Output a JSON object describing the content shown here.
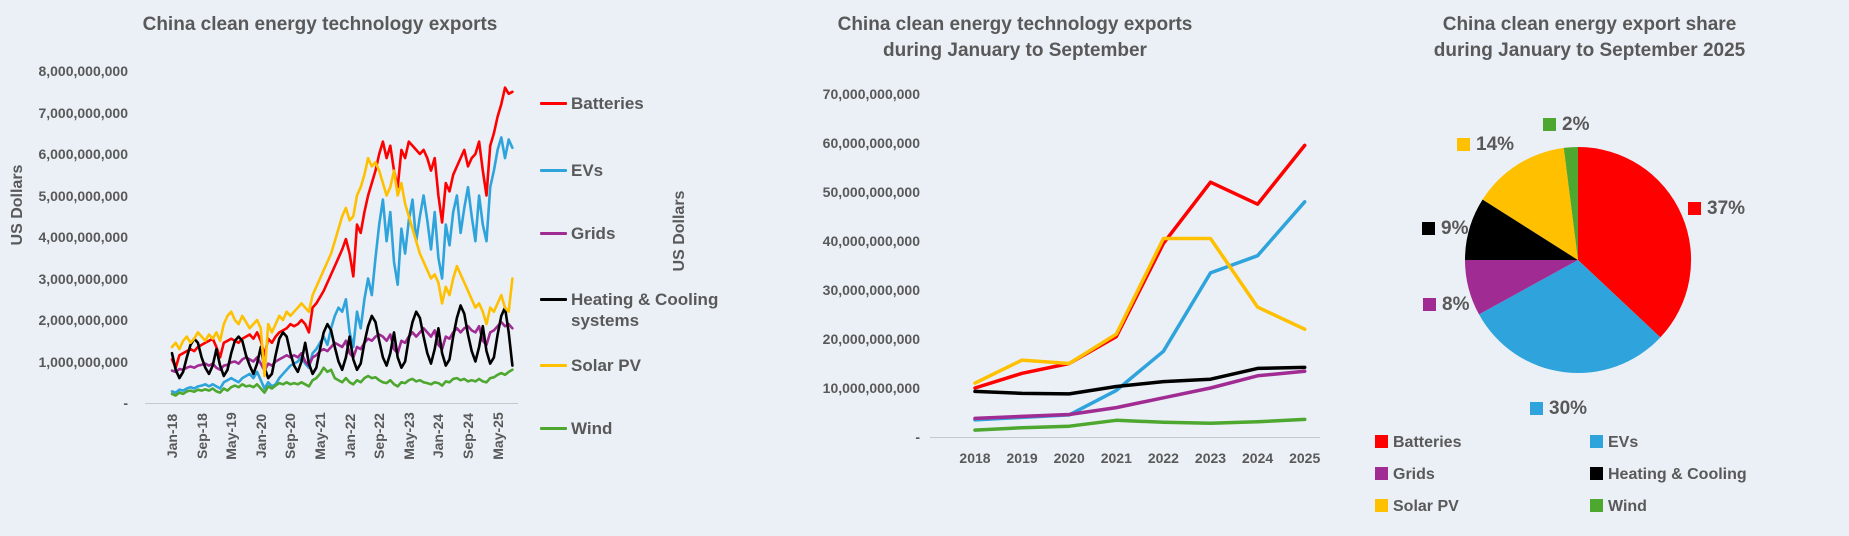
{
  "page": {
    "background": "#EAF0F6",
    "text_color": "#595959"
  },
  "series_colors": {
    "Batteries": "#FF0000",
    "EVs": "#2EA3DC",
    "Grids": "#A02B93",
    "Heating & Cooling systems": "#000000",
    "Heating & Cooling": "#000000",
    "Solar PV": "#FFC000",
    "Wind": "#4EA72E"
  },
  "chart_data": [
    {
      "id": "monthly_exports",
      "type": "line",
      "title": "China clean energy technology exports",
      "ylabel": "US Dollars",
      "ylim": [
        0,
        8000000000
      ],
      "y_ticks": [
        {
          "value_billions": 8,
          "label": "8,000,000,000"
        },
        {
          "value_billions": 7,
          "label": "7,000,000,000"
        },
        {
          "value_billions": 6,
          "label": "6,000,000,000"
        },
        {
          "value_billions": 5,
          "label": "5,000,000,000"
        },
        {
          "value_billions": 4,
          "label": "4,000,000,000"
        },
        {
          "value_billions": 3,
          "label": "3,000,000,000"
        },
        {
          "value_billions": 2,
          "label": "2,000,000,000"
        },
        {
          "value_billions": 1,
          "label": "1,000,000,000"
        },
        {
          "value_billions": 0,
          "label": "-"
        }
      ],
      "x_range": "Jan-18 to Sep-25, monthly",
      "x_tick_labels": [
        "Jan-18",
        "Sep-18",
        "May-19",
        "Jan-20",
        "Sep-20",
        "May-21",
        "Jan-22",
        "Sep-22",
        "May-23",
        "Jan-24",
        "Sep-24",
        "May-25"
      ],
      "x_tick_every_months": 8,
      "legend_position": "right",
      "legend": [
        "Batteries",
        "EVs",
        "Grids",
        "Heating & Cooling systems",
        "Solar PV",
        "Wind"
      ],
      "series": [
        {
          "name": "Batteries",
          "color": "#FF0000",
          "values_billions": [
            1.05,
            0.85,
            1.15,
            1.2,
            1.25,
            1.3,
            1.25,
            1.35,
            1.4,
            1.45,
            1.5,
            1.55,
            1.35,
            1.1,
            1.45,
            1.5,
            1.55,
            1.5,
            1.45,
            1.55,
            1.6,
            1.65,
            1.55,
            1.7,
            1.5,
            1.15,
            1.55,
            1.45,
            1.6,
            1.7,
            1.75,
            1.8,
            1.9,
            1.85,
            1.9,
            2.0,
            1.9,
            1.7,
            2.3,
            2.4,
            2.55,
            2.7,
            2.9,
            3.1,
            3.3,
            3.5,
            3.7,
            3.95,
            3.6,
            3.05,
            4.3,
            4.1,
            4.6,
            5.0,
            5.3,
            5.6,
            6.0,
            6.3,
            5.9,
            6.2,
            5.6,
            5.2,
            6.1,
            5.9,
            6.3,
            6.2,
            6.1,
            6.0,
            6.1,
            5.9,
            5.6,
            5.9,
            5.0,
            4.35,
            5.3,
            5.1,
            5.5,
            5.7,
            5.9,
            6.1,
            5.7,
            5.9,
            6.0,
            6.3,
            5.6,
            5.0,
            6.2,
            6.5,
            6.9,
            7.2,
            7.6,
            7.45,
            7.5
          ]
        },
        {
          "name": "EVs",
          "color": "#2EA3DC",
          "values_billions": [
            0.28,
            0.25,
            0.32,
            0.3,
            0.35,
            0.38,
            0.35,
            0.4,
            0.42,
            0.45,
            0.4,
            0.45,
            0.4,
            0.35,
            0.5,
            0.55,
            0.6,
            0.55,
            0.5,
            0.6,
            0.65,
            0.7,
            0.6,
            0.75,
            0.55,
            0.35,
            0.5,
            0.4,
            0.45,
            0.6,
            0.7,
            0.8,
            0.9,
            0.95,
            1.0,
            1.1,
            0.95,
            0.85,
            1.2,
            1.3,
            1.45,
            1.6,
            1.4,
            1.8,
            2.1,
            2.3,
            2.2,
            2.5,
            1.7,
            1.35,
            2.2,
            1.8,
            2.5,
            3.0,
            2.6,
            3.5,
            4.3,
            4.9,
            3.9,
            4.6,
            3.4,
            2.85,
            4.2,
            3.6,
            4.4,
            4.9,
            3.9,
            4.5,
            5.0,
            4.4,
            3.7,
            4.6,
            3.5,
            3.0,
            4.3,
            3.8,
            4.6,
            5.0,
            4.1,
            4.7,
            5.2,
            4.5,
            3.9,
            5.0,
            4.3,
            3.9,
            5.2,
            5.6,
            6.1,
            6.4,
            5.9,
            6.35,
            6.15
          ]
        },
        {
          "name": "Grids",
          "color": "#A02B93",
          "values_billions": [
            0.78,
            0.75,
            0.82,
            0.8,
            0.85,
            0.88,
            0.85,
            0.9,
            0.92,
            0.95,
            0.9,
            0.95,
            0.85,
            0.8,
            0.9,
            0.92,
            0.98,
            1.0,
            0.95,
            1.05,
            1.1,
            1.05,
            1.0,
            1.1,
            0.95,
            0.78,
            0.95,
            0.9,
            1.0,
            1.05,
            1.1,
            1.15,
            1.1,
            1.15,
            1.1,
            1.2,
            1.0,
            0.9,
            1.1,
            1.15,
            1.25,
            1.3,
            1.25,
            1.35,
            1.45,
            1.4,
            1.35,
            1.5,
            1.2,
            1.1,
            1.35,
            1.3,
            1.45,
            1.55,
            1.5,
            1.6,
            1.65,
            1.6,
            1.5,
            1.65,
            1.3,
            1.2,
            1.5,
            1.45,
            1.6,
            1.7,
            1.6,
            1.7,
            1.8,
            1.7,
            1.6,
            1.75,
            1.4,
            1.3,
            1.6,
            1.55,
            1.7,
            1.8,
            1.7,
            1.8,
            1.85,
            1.75,
            1.7,
            1.85,
            1.5,
            1.4,
            1.7,
            1.75,
            1.85,
            1.95,
            1.85,
            1.9,
            1.8
          ]
        },
        {
          "name": "Heating & Cooling systems",
          "color": "#000000",
          "values_billions": [
            1.2,
            0.8,
            0.6,
            0.75,
            1.1,
            1.4,
            1.55,
            1.45,
            1.1,
            0.85,
            0.7,
            0.9,
            1.3,
            0.9,
            0.65,
            0.8,
            1.2,
            1.5,
            1.6,
            1.5,
            1.15,
            0.9,
            0.7,
            0.95,
            1.35,
            0.85,
            0.6,
            0.7,
            1.15,
            1.55,
            1.7,
            1.6,
            1.2,
            0.9,
            0.75,
            1.0,
            1.45,
            0.95,
            0.7,
            0.85,
            1.3,
            1.7,
            1.9,
            1.75,
            1.35,
            1.0,
            0.8,
            1.1,
            1.6,
            1.05,
            0.8,
            0.95,
            1.45,
            1.85,
            2.1,
            1.95,
            1.5,
            1.1,
            0.9,
            1.2,
            1.7,
            1.1,
            0.85,
            1.0,
            1.55,
            1.95,
            2.2,
            2.05,
            1.6,
            1.2,
            0.95,
            1.3,
            1.8,
            1.2,
            0.9,
            1.05,
            1.6,
            2.05,
            2.35,
            2.15,
            1.65,
            1.25,
            1.0,
            1.35,
            1.85,
            1.25,
            0.95,
            1.1,
            1.65,
            2.1,
            2.3,
            1.7,
            0.9
          ]
        },
        {
          "name": "Solar PV",
          "color": "#FFC000",
          "values_billions": [
            1.35,
            1.45,
            1.3,
            1.5,
            1.6,
            1.45,
            1.55,
            1.7,
            1.6,
            1.5,
            1.65,
            1.55,
            1.7,
            1.5,
            1.9,
            2.1,
            2.2,
            2.0,
            1.9,
            2.1,
            1.95,
            1.8,
            1.9,
            2.0,
            1.8,
            0.65,
            1.9,
            1.7,
            1.9,
            2.1,
            2.0,
            2.2,
            2.1,
            2.2,
            2.3,
            2.4,
            2.3,
            2.2,
            2.6,
            2.8,
            3.0,
            3.2,
            3.4,
            3.6,
            3.9,
            4.2,
            4.5,
            4.7,
            4.4,
            4.5,
            5.0,
            5.2,
            5.5,
            5.9,
            5.7,
            5.8,
            5.6,
            5.3,
            5.0,
            5.2,
            5.6,
            5.0,
            5.3,
            4.8,
            4.5,
            4.2,
            3.9,
            3.6,
            3.4,
            3.2,
            3.0,
            3.1,
            2.9,
            2.4,
            2.8,
            2.6,
            3.0,
            3.3,
            3.1,
            2.9,
            2.7,
            2.5,
            2.3,
            2.4,
            2.2,
            1.9,
            2.3,
            2.2,
            2.4,
            2.6,
            2.3,
            2.2,
            3.0
          ]
        },
        {
          "name": "Wind",
          "color": "#4EA72E",
          "values_billions": [
            0.22,
            0.18,
            0.25,
            0.22,
            0.28,
            0.3,
            0.27,
            0.32,
            0.3,
            0.33,
            0.3,
            0.35,
            0.28,
            0.25,
            0.35,
            0.3,
            0.38,
            0.42,
            0.38,
            0.45,
            0.4,
            0.42,
            0.38,
            0.45,
            0.35,
            0.25,
            0.4,
            0.35,
            0.42,
            0.48,
            0.45,
            0.5,
            0.45,
            0.48,
            0.45,
            0.5,
            0.45,
            0.4,
            0.55,
            0.6,
            0.7,
            0.85,
            0.75,
            0.8,
            0.6,
            0.55,
            0.5,
            0.6,
            0.5,
            0.45,
            0.55,
            0.5,
            0.6,
            0.65,
            0.6,
            0.62,
            0.55,
            0.5,
            0.48,
            0.55,
            0.45,
            0.4,
            0.5,
            0.48,
            0.55,
            0.58,
            0.52,
            0.55,
            0.5,
            0.48,
            0.45,
            0.5,
            0.48,
            0.42,
            0.52,
            0.5,
            0.58,
            0.6,
            0.55,
            0.58,
            0.52,
            0.55,
            0.52,
            0.58,
            0.52,
            0.5,
            0.6,
            0.62,
            0.68,
            0.72,
            0.68,
            0.75,
            0.8
          ]
        }
      ]
    },
    {
      "id": "jan_sep_totals",
      "type": "line",
      "title": "China clean energy technology exports during January to September",
      "title_lines": [
        "China clean energy technology exports",
        "during January to September"
      ],
      "ylabel": "US Dollars",
      "ylim": [
        0,
        70000000000
      ],
      "y_ticks": [
        {
          "value_billions": 70,
          "label": "70,000,000,000"
        },
        {
          "value_billions": 60,
          "label": "60,000,000,000"
        },
        {
          "value_billions": 50,
          "label": "50,000,000,000"
        },
        {
          "value_billions": 40,
          "label": "40,000,000,000"
        },
        {
          "value_billions": 30,
          "label": "30,000,000,000"
        },
        {
          "value_billions": 20,
          "label": "20,000,000,000"
        },
        {
          "value_billions": 10,
          "label": "10,000,000,000"
        },
        {
          "value_billions": 0,
          "label": "-"
        }
      ],
      "categories": [
        "2018",
        "2019",
        "2020",
        "2021",
        "2022",
        "2023",
        "2024",
        "2025"
      ],
      "series": [
        {
          "name": "Batteries",
          "color": "#FF0000",
          "values_billions": [
            10.0,
            13.0,
            15.0,
            20.5,
            39.5,
            52.0,
            47.5,
            59.5
          ]
        },
        {
          "name": "EVs",
          "color": "#2EA3DC",
          "values_billions": [
            3.5,
            4.0,
            4.5,
            9.5,
            17.5,
            33.5,
            37.0,
            48.0
          ]
        },
        {
          "name": "Grids",
          "color": "#A02B93",
          "values_billions": [
            3.8,
            4.2,
            4.6,
            6.0,
            8.0,
            10.0,
            12.5,
            13.4
          ]
        },
        {
          "name": "Heating & Cooling systems",
          "color": "#000000",
          "values_billions": [
            9.3,
            8.9,
            8.8,
            10.3,
            11.3,
            11.8,
            14.0,
            14.2
          ]
        },
        {
          "name": "Solar PV",
          "color": "#FFC000",
          "values_billions": [
            11.0,
            15.7,
            15.0,
            21.0,
            40.5,
            40.5,
            26.5,
            22.0
          ]
        },
        {
          "name": "Wind",
          "color": "#4EA72E",
          "values_billions": [
            1.4,
            1.9,
            2.2,
            3.4,
            3.0,
            2.8,
            3.1,
            3.6
          ]
        }
      ]
    },
    {
      "id": "export_share_2025",
      "type": "pie",
      "title": "China clean energy export share during January to September 2025",
      "title_lines": [
        "China clean energy export share",
        "during January to September 2025"
      ],
      "slices": [
        {
          "label": "Batteries",
          "pct": 37,
          "pct_label": "37%",
          "color": "#FF0000"
        },
        {
          "label": "EVs",
          "pct": 30,
          "pct_label": "30%",
          "color": "#2EA3DC"
        },
        {
          "label": "Grids",
          "pct": 8,
          "pct_label": "8%",
          "color": "#A02B93"
        },
        {
          "label": "Heating & Cooling",
          "pct": 9,
          "pct_label": "9%",
          "color": "#000000"
        },
        {
          "label": "Solar PV",
          "pct": 14,
          "pct_label": "14%",
          "color": "#FFC000"
        },
        {
          "label": "Wind",
          "pct": 2,
          "pct_label": "2%",
          "color": "#4EA72E"
        }
      ],
      "legend_columns": [
        [
          "Batteries",
          "Grids",
          "Solar PV"
        ],
        [
          "EVs",
          "Heating & Cooling",
          "Wind"
        ]
      ]
    }
  ]
}
